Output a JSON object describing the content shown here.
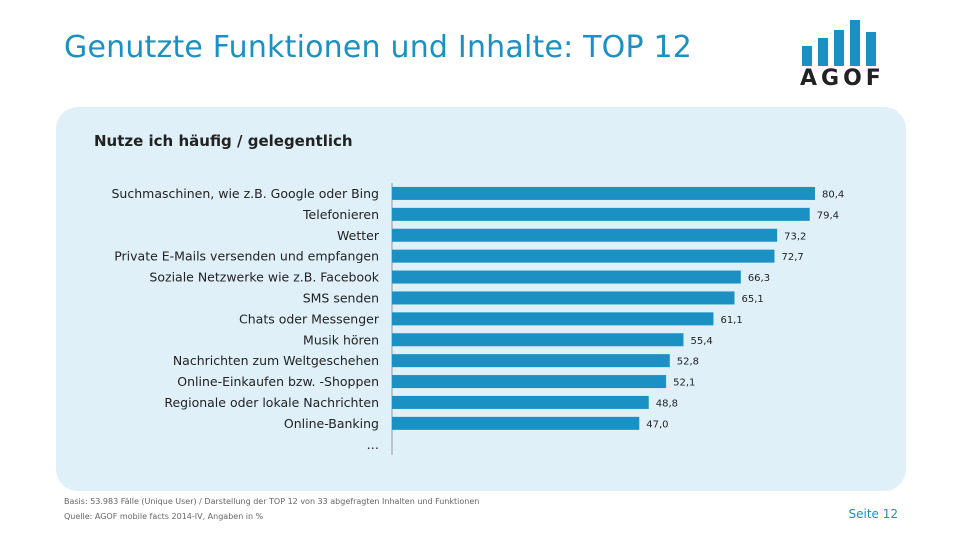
{
  "header": {
    "title": "Genutzte Funktionen und Inhalte: TOP 12",
    "logo_text": "AGOF"
  },
  "colors": {
    "accent": "#1a91c2",
    "bar": "#1a91c2",
    "panel": "#dff0f9"
  },
  "chart_data": {
    "type": "bar",
    "orientation": "horizontal",
    "title": "Nutze ich häufig / gelegentlich",
    "categories": [
      "Suchmaschinen, wie z.B. Google oder Bing",
      "Telefonieren",
      "Wetter",
      "Private E-Mails versenden und empfangen",
      "Soziale Netzwerke wie z.B. Facebook",
      "SMS senden",
      "Chats oder Messenger",
      "Musik hören",
      "Nachrichten zum Weltgeschehen",
      "Online-Einkaufen bzw. -Shoppen",
      "Regionale oder lokale Nachrichten",
      "Online-Banking",
      "…"
    ],
    "values": [
      80.4,
      79.4,
      73.2,
      72.7,
      66.3,
      65.1,
      61.1,
      55.4,
      52.8,
      52.1,
      48.8,
      47.0,
      null
    ],
    "value_labels": [
      "80,4",
      "79,4",
      "73,2",
      "72,7",
      "66,3",
      "65,1",
      "61,1",
      "55,4",
      "52,8",
      "52,1",
      "48,8",
      "47,0",
      ""
    ],
    "xlim": [
      0,
      100
    ],
    "grid": false,
    "legend": "none"
  },
  "footer": {
    "basis": "Basis: 53.983 Fälle (Unique User) / Darstellung der TOP 12 von 33 abgefragten Inhalten und Funktionen",
    "source": "Quelle: AGOF mobile facts 2014-IV, Angaben in %",
    "page": "Seite 12"
  }
}
